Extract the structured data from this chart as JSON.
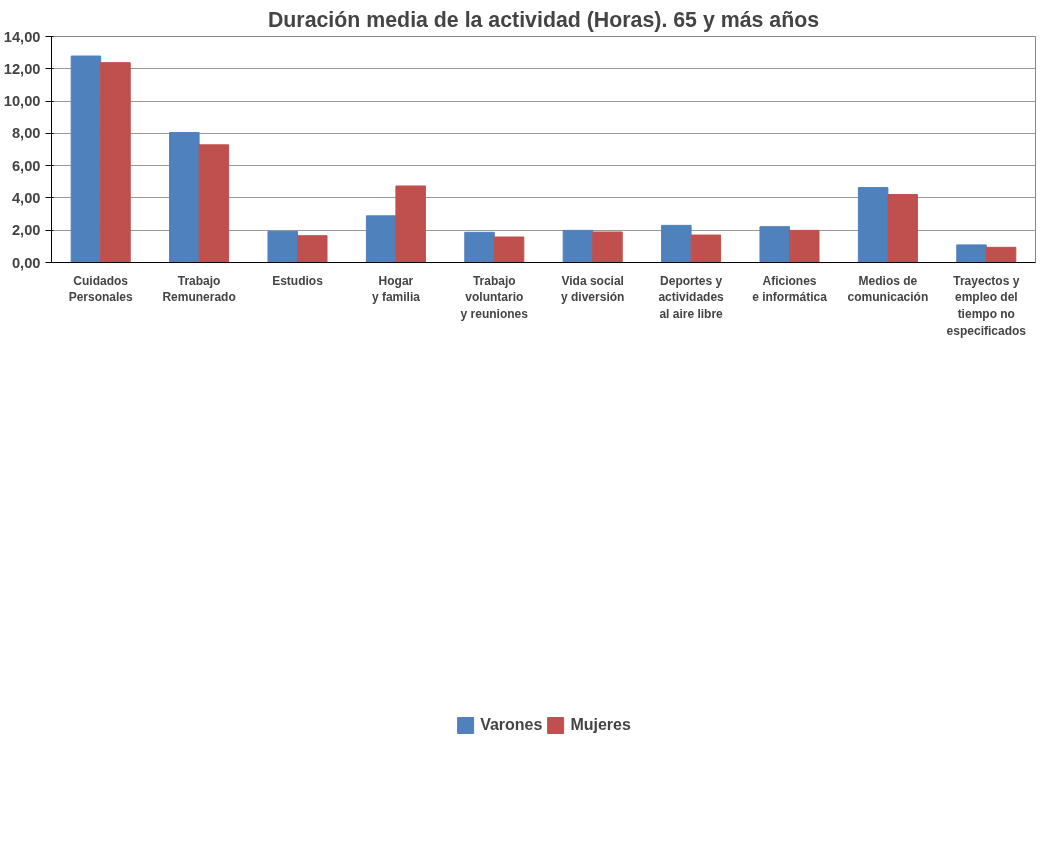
{
  "chart_data": {
    "type": "bar",
    "title": "Duración media de la actividad (Horas). 65 y más años",
    "categories": [
      "Cuidados\nPersonales",
      "Trabajo\nRemunerado",
      "Estudios",
      "Hogar\ny familia",
      "Trabajo\nvoluntario\ny reuniones",
      "Vida social\ny diversión",
      "Deportes y\nactividades\nal aire libre",
      "Aficiones\ne informática",
      "Medios de\ncomunicación",
      "Trayectos y\nempleo del\ntiempo no\nespecificados"
    ],
    "series": [
      {
        "name": "Varones",
        "color": "#4f81bd",
        "values": [
          12.79,
          8.05,
          1.93,
          2.89,
          1.87,
          1.99,
          2.3,
          2.22,
          4.64,
          1.09
        ]
      },
      {
        "name": "Mujeres",
        "color": "#c0504d",
        "values": [
          12.38,
          7.29,
          1.66,
          4.74,
          1.58,
          1.89,
          1.7,
          1.99,
          4.21,
          0.94
        ]
      }
    ],
    "ylim": [
      0,
      14
    ],
    "yticks": [
      {
        "value": 0,
        "label": "0,00"
      },
      {
        "value": 2,
        "label": "2,00"
      },
      {
        "value": 4,
        "label": "4,00"
      },
      {
        "value": 6,
        "label": "6,00"
      },
      {
        "value": 8,
        "label": "8,00"
      },
      {
        "value": 10,
        "label": "10,00"
      },
      {
        "value": 12,
        "label": "12,00"
      },
      {
        "value": 14,
        "label": "14,00"
      }
    ],
    "grid": "y",
    "legend": "bottom"
  }
}
